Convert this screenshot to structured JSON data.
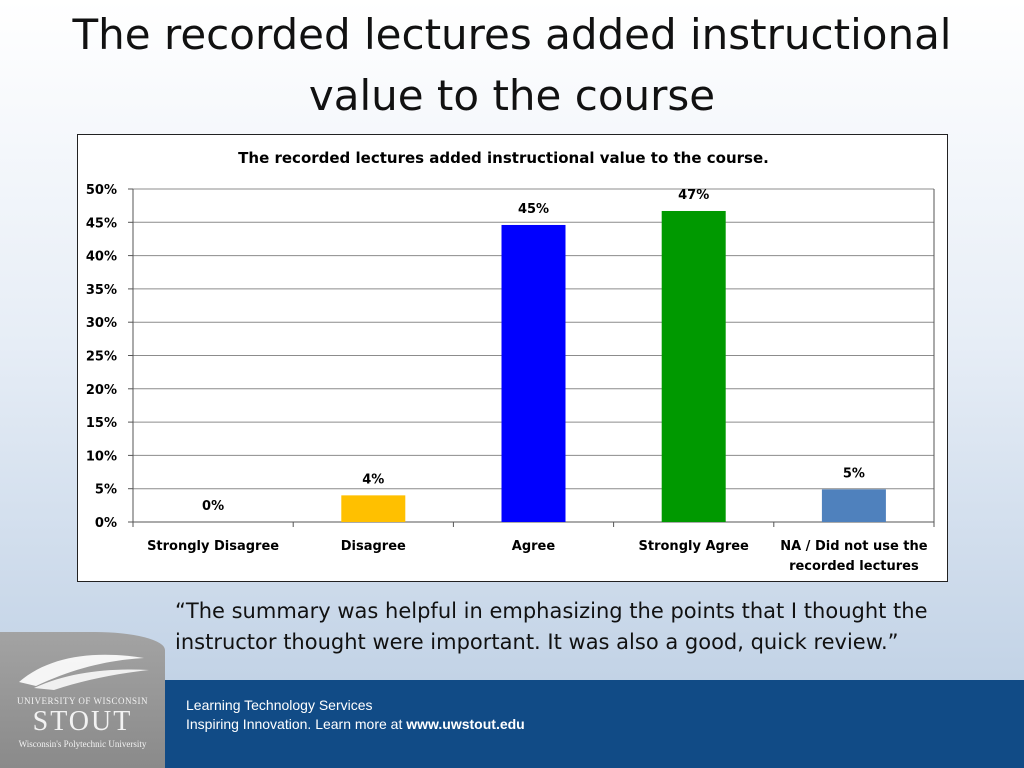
{
  "slide": {
    "title": "The recorded lectures added instructional value to the course",
    "quote": "“The summary was helpful in emphasizing the points that I thought the instructor thought were important. It was also a good, quick review.”"
  },
  "footer": {
    "line1": "Learning Technology Services",
    "line2_text": "Inspiring Innovation.  Learn more at ",
    "line2_url": "www.uwstout.edu"
  },
  "logo": {
    "university": "UNIVERSITY OF WISCONSIN",
    "name": "STOUT",
    "subtitle": "Wisconsin's Polytechnic University"
  },
  "colors": {
    "footer_bar": "#114b86",
    "logo_panel": "#999999"
  },
  "chart_data": {
    "type": "bar",
    "title": "The recorded lectures added instructional value to the course.",
    "xlabel": "",
    "ylabel": "",
    "categories": [
      "Strongly Disagree",
      "Disagree",
      "Agree",
      "Strongly Agree",
      "NA / Did not use the recorded lectures"
    ],
    "category_lines": [
      [
        "Strongly Disagree"
      ],
      [
        "Disagree"
      ],
      [
        "Agree"
      ],
      [
        "Strongly Agree"
      ],
      [
        "NA / Did not use the",
        "recorded lectures"
      ]
    ],
    "values": [
      0,
      4,
      45,
      47,
      5
    ],
    "bar_heights": [
      0,
      4,
      44.6,
      46.7,
      4.9
    ],
    "data_labels": [
      "0%",
      "4%",
      "45%",
      "47%",
      "5%"
    ],
    "colors": [
      "#ff0000",
      "#ffc000",
      "#0000ff",
      "#009900",
      "#4f81bd"
    ],
    "ylim": [
      0,
      50
    ],
    "yticks": [
      0,
      5,
      10,
      15,
      20,
      25,
      30,
      35,
      40,
      45,
      50
    ],
    "ytick_labels": [
      "0%",
      "5%",
      "10%",
      "15%",
      "20%",
      "25%",
      "30%",
      "35%",
      "40%",
      "45%",
      "50%"
    ],
    "grid": true,
    "legend": "none"
  }
}
